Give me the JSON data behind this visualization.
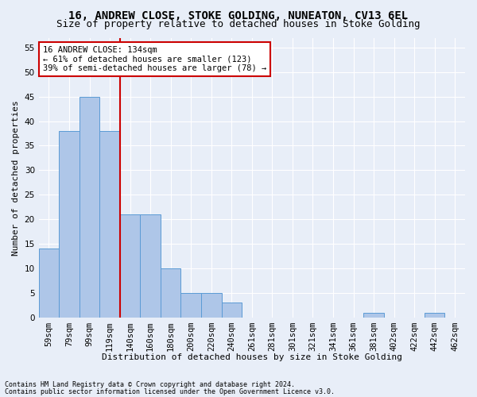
{
  "title": "16, ANDREW CLOSE, STOKE GOLDING, NUNEATON, CV13 6EL",
  "subtitle": "Size of property relative to detached houses in Stoke Golding",
  "xlabel": "Distribution of detached houses by size in Stoke Golding",
  "ylabel": "Number of detached properties",
  "categories": [
    "59sqm",
    "79sqm",
    "99sqm",
    "119sqm",
    "140sqm",
    "160sqm",
    "180sqm",
    "200sqm",
    "220sqm",
    "240sqm",
    "261sqm",
    "281sqm",
    "301sqm",
    "321sqm",
    "341sqm",
    "361sqm",
    "381sqm",
    "402sqm",
    "422sqm",
    "442sqm",
    "462sqm"
  ],
  "values": [
    14,
    38,
    45,
    38,
    21,
    21,
    10,
    5,
    5,
    3,
    0,
    0,
    0,
    0,
    0,
    0,
    1,
    0,
    0,
    1,
    0
  ],
  "bar_color": "#aec6e8",
  "bar_edge_color": "#5b9bd5",
  "annotation_line1": "16 ANDREW CLOSE: 134sqm",
  "annotation_line2": "← 61% of detached houses are smaller (123)",
  "annotation_line3": "39% of semi-detached houses are larger (78) →",
  "annotation_box_color": "#ffffff",
  "annotation_box_edge": "#cc0000",
  "vline_color": "#cc0000",
  "vline_x": 3.5,
  "ylim": [
    0,
    57
  ],
  "yticks": [
    0,
    5,
    10,
    15,
    20,
    25,
    30,
    35,
    40,
    45,
    50,
    55
  ],
  "footnote1": "Contains HM Land Registry data © Crown copyright and database right 2024.",
  "footnote2": "Contains public sector information licensed under the Open Government Licence v3.0.",
  "background_color": "#e8eef8",
  "grid_color": "#ffffff",
  "title_fontsize": 10,
  "subtitle_fontsize": 9,
  "axis_label_fontsize": 8,
  "tick_fontsize": 7.5,
  "annotation_fontsize": 7.5,
  "footnote_fontsize": 6
}
